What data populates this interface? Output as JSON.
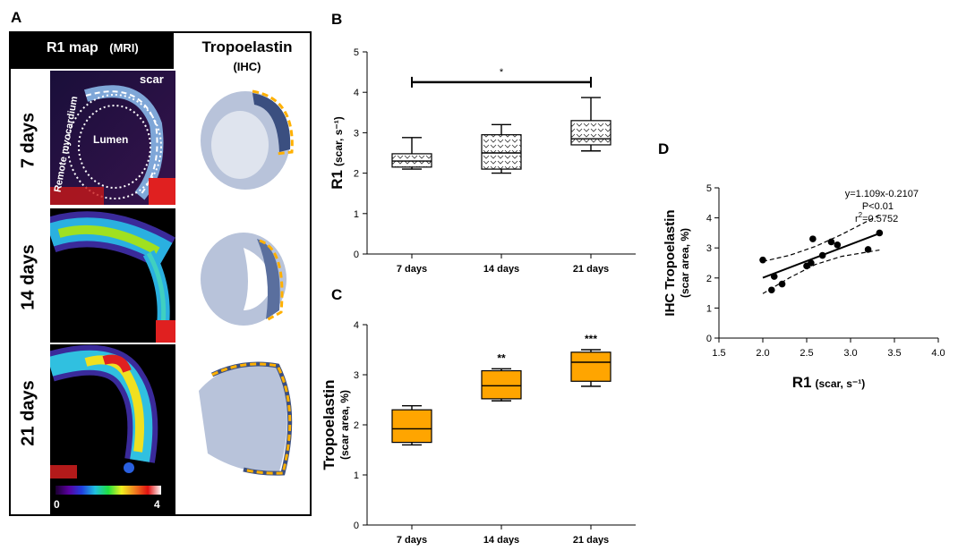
{
  "panels": {
    "A": "A",
    "B": "B",
    "C": "C",
    "D": "D"
  },
  "panelA": {
    "col1_title": "R1 map",
    "col1_sub": "(MRI)",
    "col2_title": "Tropoelastin",
    "col2_sub": "(IHC)",
    "rows": [
      "7 days",
      "14 days",
      "21 days"
    ],
    "annot_scar": "scar",
    "annot_remote": "Remote myocardium",
    "annot_lumen": "Lumen",
    "colorbar_min": "0",
    "colorbar_max": "4",
    "colors": {
      "scar_dash": "#ffb000",
      "ihc_tissue": "#5a6f9e",
      "ihc_bg": "#b8c3da"
    }
  },
  "chart_data": [
    {
      "id": "B",
      "type": "boxplot",
      "ylabel": "R1",
      "ylabel_unit": "(scar, s⁻¹)",
      "categories": [
        "7 days",
        "14 days",
        "21 days"
      ],
      "ylim": [
        0,
        5
      ],
      "yticks": [
        0,
        1,
        2,
        3,
        4,
        5
      ],
      "boxes": [
        {
          "min": 2.1,
          "q1": 2.15,
          "median": 2.3,
          "q3": 2.48,
          "max": 2.88
        },
        {
          "min": 2.0,
          "q1": 2.1,
          "median": 2.5,
          "q3": 2.95,
          "max": 3.2
        },
        {
          "min": 2.55,
          "q1": 2.7,
          "median": 2.85,
          "q3": 3.3,
          "max": 3.87
        }
      ],
      "fill": "pattern",
      "significance": {
        "label": "*",
        "from": 0,
        "to": 2,
        "y": 4.25
      }
    },
    {
      "id": "C",
      "type": "boxplot",
      "ylabel": "Tropoelastin",
      "ylabel_unit": "(scar area, %)",
      "categories": [
        "7 days",
        "14 days",
        "21 days"
      ],
      "ylim": [
        0,
        4
      ],
      "yticks": [
        0,
        1,
        2,
        3,
        4
      ],
      "boxes": [
        {
          "min": 1.6,
          "q1": 1.65,
          "median": 1.92,
          "q3": 2.3,
          "max": 2.38,
          "star": ""
        },
        {
          "min": 2.48,
          "q1": 2.52,
          "median": 2.78,
          "q3": 3.08,
          "max": 3.12,
          "star": "**"
        },
        {
          "min": 2.77,
          "q1": 2.87,
          "median": 3.25,
          "q3": 3.45,
          "max": 3.5,
          "star": "***"
        }
      ],
      "fill_color": "#ffa500"
    },
    {
      "id": "D",
      "type": "scatter",
      "xlabel": "R1",
      "xlabel_unit": "(scar, s⁻¹)",
      "ylabel": "IHC Tropoelastin",
      "ylabel_unit": "(scar area, %)",
      "xlim": [
        1.5,
        4.0
      ],
      "ylim": [
        0,
        5
      ],
      "xticks": [
        1.5,
        2.0,
        2.5,
        3.0,
        3.5,
        4.0
      ],
      "yticks": [
        0,
        1,
        2,
        3,
        4,
        5
      ],
      "points": [
        {
          "x": 2.0,
          "y": 2.6
        },
        {
          "x": 2.1,
          "y": 1.6
        },
        {
          "x": 2.13,
          "y": 2.05
        },
        {
          "x": 2.22,
          "y": 1.8
        },
        {
          "x": 2.5,
          "y": 2.4
        },
        {
          "x": 2.55,
          "y": 2.5
        },
        {
          "x": 2.57,
          "y": 3.3
        },
        {
          "x": 2.68,
          "y": 2.75
        },
        {
          "x": 2.78,
          "y": 3.2
        },
        {
          "x": 2.85,
          "y": 3.1
        },
        {
          "x": 3.2,
          "y": 2.95
        },
        {
          "x": 3.33,
          "y": 3.5
        }
      ],
      "fit": {
        "slope": 1.109,
        "intercept": -0.2107,
        "x_range": [
          2.0,
          3.33
        ]
      },
      "ci_lower": [
        [
          2.0,
          1.48
        ],
        [
          2.3,
          2.0
        ],
        [
          2.6,
          2.45
        ],
        [
          2.9,
          2.72
        ],
        [
          3.33,
          2.93
        ]
      ],
      "ci_upper": [
        [
          2.0,
          2.55
        ],
        [
          2.3,
          2.75
        ],
        [
          2.6,
          3.05
        ],
        [
          2.9,
          3.45
        ],
        [
          3.33,
          4.1
        ]
      ],
      "equation": "y=1.109x-0.2107",
      "pvalue": "P<0.01",
      "r2_prefix": "r",
      "r2_sup": "2",
      "r2_value": "=0.5752"
    }
  ]
}
